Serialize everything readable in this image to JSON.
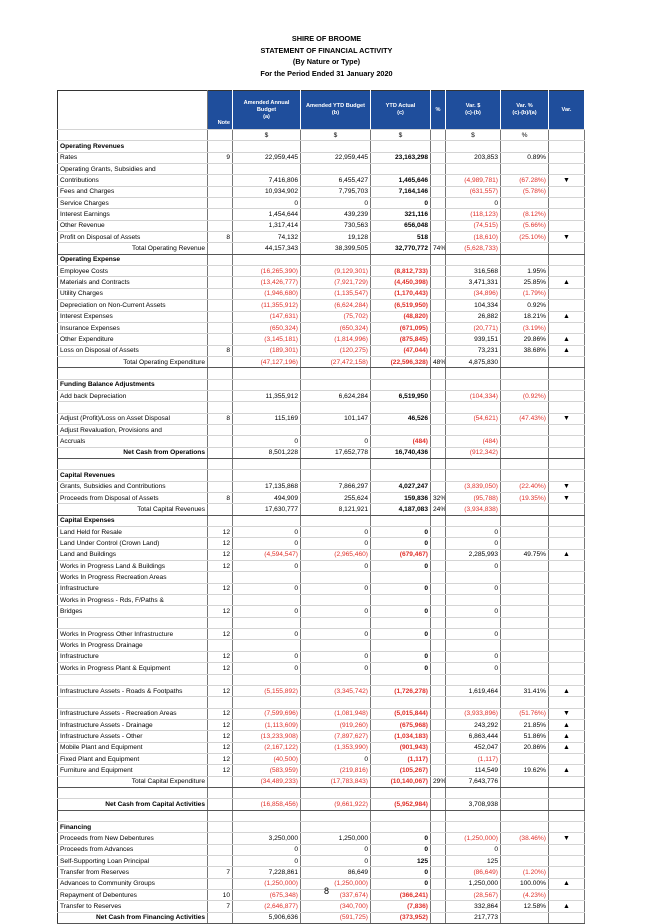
{
  "header": {
    "lines": [
      "SHIRE OF BROOME",
      "STATEMENT OF FINANCIAL ACTIVITY",
      "(By Nature or Type)",
      "For the Period Ended 31 January 2020"
    ]
  },
  "table": {
    "columns": [
      {
        "title": "Note"
      },
      {
        "title": "Amended Annual Budget",
        "sub": "(a)"
      },
      {
        "title": "Amended YTD Budget",
        "sub": "(b)"
      },
      {
        "title": "YTD Actual",
        "sub": "(c)"
      },
      {
        "title": "%"
      },
      {
        "title": "Var. $",
        "sub": "(c)-(b)"
      },
      {
        "title": "Var. %",
        "sub": "(c)-(b)/(a)"
      },
      {
        "title": "Var."
      }
    ],
    "units": [
      null,
      null,
      "$",
      "$",
      "$",
      null,
      "$",
      "%",
      null
    ],
    "rows": [
      {
        "style": "heading",
        "cells": [
          "Operating Revenues",
          null,
          null,
          null,
          null,
          null,
          null,
          null,
          null
        ]
      },
      {
        "cells": [
          "Rates",
          "9",
          "22,959,445",
          "22,959,445",
          "23,163,298",
          null,
          "203,853",
          "0.89%",
          null
        ]
      },
      {
        "cells": [
          "Operating Grants, Subsidies and",
          null,
          null,
          null,
          null,
          null,
          null,
          null,
          null
        ]
      },
      {
        "cells": [
          "Contributions",
          null,
          "7,416,806",
          "6,455,427",
          "1,465,646",
          null,
          "(4,989,781)",
          "(67.28%)",
          "▼"
        ]
      },
      {
        "cells": [
          "Fees and Charges",
          null,
          "10,934,902",
          "7,795,703",
          "7,164,146",
          null,
          "(631,557)",
          "(5.78%)",
          null
        ]
      },
      {
        "cells": [
          "Service Charges",
          null,
          "0",
          "0",
          "0",
          null,
          "0",
          null,
          null
        ]
      },
      {
        "cells": [
          "Interest Earnings",
          null,
          "1,454,644",
          "439,239",
          "321,116",
          null,
          "(118,123)",
          "(8.12%)",
          null
        ]
      },
      {
        "cells": [
          "Other Revenue",
          null,
          "1,317,414",
          "730,563",
          "656,048",
          null,
          "(74,515)",
          "(5.66%)",
          null
        ]
      },
      {
        "cells": [
          "Profit on Disposal of Assets",
          "8",
          "74,132",
          "19,128",
          "518",
          null,
          "(18,610)",
          "(25.10%)",
          "▼"
        ]
      },
      {
        "style": "total",
        "cells": [
          "Total Operating Revenue",
          null,
          "44,157,343",
          "38,399,505",
          "32,770,772",
          "74%",
          "(5,628,733)",
          null,
          null
        ]
      },
      {
        "style": "heading",
        "cells": [
          "Operating Expense",
          null,
          null,
          null,
          null,
          null,
          null,
          null,
          null
        ]
      },
      {
        "cells": [
          "Employee Costs",
          null,
          "(16,265,390)",
          "(9,129,301)",
          "(8,812,733)",
          null,
          "316,568",
          "1.95%",
          null
        ]
      },
      {
        "cells": [
          "Materials and Contracts",
          null,
          "(13,426,777)",
          "(7,921,729)",
          "(4,450,398)",
          null,
          "3,471,331",
          "25.85%",
          "▲"
        ]
      },
      {
        "cells": [
          "Utility Charges",
          null,
          "(1,946,680)",
          "(1,135,547)",
          "(1,170,443)",
          null,
          "(34,896)",
          "(1.79%)",
          null
        ]
      },
      {
        "cells": [
          "Depreciation on Non-Current Assets",
          null,
          "(11,355,912)",
          "(6,624,284)",
          "(6,519,950)",
          null,
          "104,334",
          "0.92%",
          null
        ]
      },
      {
        "cells": [
          "Interest Expenses",
          null,
          "(147,631)",
          "(75,702)",
          "(48,820)",
          null,
          "26,882",
          "18.21%",
          "▲"
        ]
      },
      {
        "cells": [
          "Insurance Expenses",
          null,
          "(650,324)",
          "(650,324)",
          "(671,095)",
          null,
          "(20,771)",
          "(3.19%)",
          null
        ]
      },
      {
        "cells": [
          "Other Expenditure",
          null,
          "(3,145,181)",
          "(1,814,996)",
          "(875,845)",
          null,
          "939,151",
          "29.86%",
          "▲"
        ]
      },
      {
        "cells": [
          "Loss on Disposal of Assets",
          "8",
          "(189,301)",
          "(120,275)",
          "(47,044)",
          null,
          "73,231",
          "38.68%",
          "▲"
        ]
      },
      {
        "style": "total",
        "cells": [
          "Total Operating Expenditure",
          null,
          "(47,127,196)",
          "(27,472,158)",
          "(22,596,328)",
          "48%",
          "4,875,830",
          null,
          null
        ]
      },
      {
        "style": "heading",
        "cells": [
          "Funding Balance Adjustments",
          null,
          null,
          null,
          null,
          null,
          null,
          null,
          null
        ]
      },
      {
        "cells": [
          "Add back Depreciation",
          null,
          "11,355,912",
          "6,624,284",
          "6,519,950",
          null,
          "(104,334)",
          "(0.92%)",
          null
        ]
      },
      {
        "cells": [
          "Adjust (Profit)/Loss on Asset Disposal",
          "8",
          "115,169",
          "101,147",
          "46,526",
          null,
          "(54,621)",
          "(47.43%)",
          "▼"
        ]
      },
      {
        "cells": [
          "Adjust Revaluation, Provisions and",
          null,
          null,
          null,
          null,
          null,
          null,
          null,
          null
        ]
      },
      {
        "cells": [
          "Accruals",
          null,
          "0",
          "0",
          "(484)",
          null,
          "(484)",
          null,
          null
        ]
      },
      {
        "style": "net",
        "cells": [
          "Net Cash from Operations",
          null,
          "8,501,228",
          "17,652,778",
          "16,740,436",
          null,
          "(912,342)",
          null,
          null
        ]
      },
      {
        "style": "heading",
        "cells": [
          "Capital Revenues",
          null,
          null,
          null,
          null,
          null,
          null,
          null,
          null
        ]
      },
      {
        "cells": [
          "Grants, Subsidies and Contributions",
          null,
          "17,135,868",
          "7,866,297",
          "4,027,247",
          null,
          "(3,839,050)",
          "(22.40%)",
          "▼"
        ]
      },
      {
        "cells": [
          "Proceeds from Disposal of Assets",
          "8",
          "494,909",
          "255,624",
          "159,836",
          "32%",
          "(95,788)",
          "(19.35%)",
          "▼"
        ]
      },
      {
        "style": "total",
        "cells": [
          "Total Capital Revenues",
          null,
          "17,630,777",
          "8,121,921",
          "4,187,083",
          "24%",
          "(3,934,838)",
          null,
          null
        ]
      },
      {
        "style": "heading",
        "cells": [
          "Capital Expenses",
          null,
          null,
          null,
          null,
          null,
          null,
          null,
          null
        ]
      },
      {
        "cells": [
          "Land Held for Resale",
          "12",
          "0",
          "0",
          "0",
          null,
          "0",
          null,
          null
        ]
      },
      {
        "cells": [
          "Land Under Control (Crown Land)",
          "12",
          "0",
          "0",
          "0",
          null,
          "0",
          null,
          null
        ]
      },
      {
        "cells": [
          "Land and Buildings",
          "12",
          "(4,594,547)",
          "(2,965,460)",
          "(679,467)",
          null,
          "2,285,993",
          "49.75%",
          "▲"
        ]
      },
      {
        "cells": [
          "Works in Progress Land & Buildings",
          "12",
          "0",
          "0",
          "0",
          null,
          "0",
          null,
          null
        ]
      },
      {
        "cells": [
          "Works In Progress Recreation Areas",
          null,
          null,
          null,
          null,
          null,
          null,
          null,
          null
        ]
      },
      {
        "cells": [
          "Infrastructure",
          "12",
          "0",
          "0",
          "0",
          null,
          "0",
          null,
          null
        ]
      },
      {
        "cells": [
          "Works in Progress - Rds, F/Paths &",
          null,
          null,
          null,
          null,
          null,
          null,
          null,
          null
        ]
      },
      {
        "cells": [
          "Bridges",
          "12",
          "0",
          "0",
          "0",
          null,
          "0",
          null,
          null
        ]
      },
      {
        "cells": [
          "Works In Progress Other Infrastructure",
          "12",
          "0",
          "0",
          "0",
          null,
          "0",
          null,
          null
        ]
      },
      {
        "cells": [
          "Works In Progress Drainage",
          null,
          null,
          null,
          null,
          null,
          null,
          null,
          null
        ]
      },
      {
        "cells": [
          "Infrastructure",
          "12",
          "0",
          "0",
          "0",
          null,
          "0",
          null,
          null
        ]
      },
      {
        "cells": [
          "Works in Progress Plant & Equipment",
          "12",
          "0",
          "0",
          "0",
          null,
          "0",
          null,
          null
        ]
      },
      {
        "cells": [
          "Infrastructure Assets - Roads & Footpaths",
          "12",
          "(5,155,892)",
          "(3,345,742)",
          "(1,726,278)",
          null,
          "1,619,464",
          "31.41%",
          "▲"
        ]
      },
      {
        "cells": [
          "Infrastructure Assets - Recreation Areas",
          "12",
          "(7,599,696)",
          "(1,081,948)",
          "(5,015,844)",
          null,
          "(3,933,896)",
          "(51.76%)",
          "▼"
        ]
      },
      {
        "cells": [
          "Infrastructure Assets - Drainage",
          "12",
          "(1,113,609)",
          "(919,260)",
          "(675,968)",
          null,
          "243,292",
          "21.85%",
          "▲"
        ]
      },
      {
        "cells": [
          "Infrastructure Assets - Other",
          "12",
          "(13,233,908)",
          "(7,897,627)",
          "(1,034,183)",
          null,
          "6,863,444",
          "51.86%",
          "▲"
        ]
      },
      {
        "cells": [
          "Mobile Plant and Equipment",
          "12",
          "(2,167,122)",
          "(1,353,990)",
          "(901,943)",
          null,
          "452,047",
          "20.86%",
          "▲"
        ]
      },
      {
        "cells": [
          "Fixed Plant and Equipment",
          "12",
          "(40,500)",
          "0",
          "(1,117)",
          null,
          "(1,117)",
          null,
          null
        ]
      },
      {
        "cells": [
          "Furniture and Equipment",
          "12",
          "(583,959)",
          "(219,816)",
          "(105,267)",
          null,
          "114,549",
          "19.62%",
          "▲"
        ]
      },
      {
        "style": "total",
        "cells": [
          "Total Capital Expenditure",
          null,
          "(34,489,233)",
          "(17,783,843)",
          "(10,140,067)",
          "29%",
          "7,643,776",
          null,
          null
        ]
      },
      {
        "style": "net",
        "cells": [
          "Net Cash from Capital Activities",
          null,
          "(16,858,456)",
          "(9,661,922)",
          "(5,952,984)",
          null,
          "3,708,938",
          null,
          null
        ]
      },
      {
        "style": "heading",
        "cells": [
          "Financing",
          null,
          null,
          null,
          null,
          null,
          null,
          null,
          null
        ]
      },
      {
        "cells": [
          "Proceeds from New Debentures",
          null,
          "3,250,000",
          "1,250,000",
          "0",
          null,
          "(1,250,000)",
          "(38.46%)",
          "▼"
        ]
      },
      {
        "cells": [
          "Proceeds from Advances",
          null,
          "0",
          "0",
          "0",
          null,
          "0",
          null,
          null
        ]
      },
      {
        "cells": [
          "Self-Supporting Loan Principal",
          null,
          "0",
          "0",
          "125",
          null,
          "125",
          null,
          null
        ]
      },
      {
        "cells": [
          "Transfer from Reserves",
          "7",
          "7,228,861",
          "86,649",
          "0",
          null,
          "(86,649)",
          "(1.20%)",
          null
        ]
      },
      {
        "cells": [
          "Advances to Community Groups",
          null,
          "(1,250,000)",
          "(1,250,000)",
          "0",
          null,
          "1,250,000",
          "100.00%",
          "▲"
        ]
      },
      {
        "cells": [
          "Repayment of Debentures",
          "10",
          "(675,348)",
          "(337,674)",
          "(366,241)",
          null,
          "(28,567)",
          "(4.23%)",
          null
        ]
      },
      {
        "cells": [
          "Transfer to Reserves",
          "7",
          "(2,646,877)",
          "(340,700)",
          "(7,836)",
          null,
          "332,864",
          "12.58%",
          "▲"
        ]
      },
      {
        "style": "net",
        "cells": [
          "Net Cash from Financing Activities",
          null,
          "5,906,636",
          "(591,725)",
          "(373,952)",
          null,
          "217,773",
          null,
          null
        ]
      }
    ]
  },
  "footer": {
    "page": "8"
  }
}
